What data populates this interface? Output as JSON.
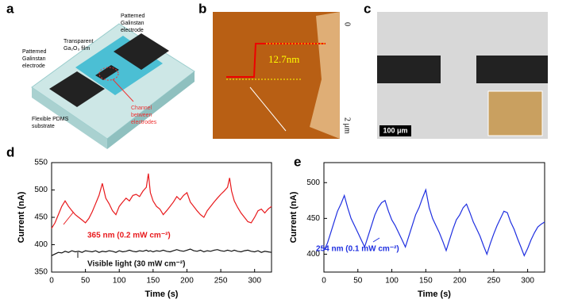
{
  "panels": {
    "a": {
      "label": "a",
      "electrode_top": [
        "Patterned",
        "Galinstan",
        "electrode"
      ],
      "electrode_left": [
        "Patterned",
        "Galinstan",
        "electrode"
      ],
      "film": [
        "Transparent",
        "Ga₂O₃ film"
      ],
      "substrate": [
        "Flexible PDMS",
        "substrate"
      ],
      "channel": [
        "Channel",
        "between",
        "electrodes"
      ]
    },
    "b": {
      "label": "b",
      "height": "12.7nm",
      "scale_top": "0",
      "scale_bottom": "2 μm"
    },
    "c": {
      "label": "c",
      "scale_bar": "100 μm"
    }
  },
  "chart_data": [
    {
      "type": "line",
      "panel_label": "d",
      "x_label": "Time (s)",
      "y_label": "Current (nA)",
      "x": [
        0,
        5,
        10,
        15,
        20,
        25,
        30,
        35,
        40,
        45,
        50,
        55,
        60,
        65,
        70,
        75,
        80,
        85,
        90,
        95,
        100,
        105,
        110,
        115,
        120,
        125,
        130,
        135,
        140,
        143,
        146,
        150,
        155,
        160,
        165,
        170,
        175,
        180,
        185,
        190,
        195,
        200,
        205,
        210,
        215,
        220,
        225,
        230,
        235,
        240,
        245,
        250,
        255,
        260,
        263,
        266,
        270,
        275,
        280,
        285,
        290,
        295,
        300,
        305,
        310,
        315,
        320,
        325
      ],
      "series": [
        {
          "name": "365 nm (0.2 mW cm⁻²)",
          "color": "#e8191c",
          "values": [
            430,
            440,
            455,
            470,
            480,
            470,
            462,
            455,
            450,
            445,
            440,
            448,
            460,
            475,
            490,
            512,
            485,
            475,
            462,
            455,
            470,
            478,
            485,
            480,
            490,
            492,
            488,
            498,
            505,
            530,
            495,
            480,
            470,
            465,
            455,
            462,
            470,
            478,
            488,
            482,
            490,
            495,
            478,
            470,
            462,
            455,
            450,
            462,
            470,
            478,
            485,
            492,
            498,
            505,
            522,
            498,
            480,
            468,
            458,
            450,
            442,
            440,
            450,
            462,
            465,
            458,
            465,
            470
          ]
        },
        {
          "name": "Visible light (30 mW cm⁻²)",
          "color": "#111111",
          "values": [
            380,
            383,
            386,
            385,
            388,
            386,
            389,
            387,
            388,
            386,
            389,
            388,
            387,
            389,
            386,
            388,
            387,
            389,
            388,
            386,
            389,
            387,
            388,
            390,
            388,
            387,
            389,
            388,
            390,
            388,
            389,
            387,
            389,
            388,
            390,
            388,
            387,
            389,
            391,
            389,
            388,
            390,
            392,
            389,
            388,
            390,
            387,
            389,
            388,
            390,
            391,
            389,
            388,
            390,
            389,
            388,
            390,
            388,
            387,
            389,
            390,
            388,
            387,
            389,
            386,
            388,
            387,
            386
          ]
        }
      ],
      "xlim": [
        0,
        325
      ],
      "xticks": [
        0,
        50,
        100,
        150,
        200,
        250,
        300
      ],
      "ylim": [
        350,
        550
      ],
      "yticks": [
        350,
        400,
        450,
        500,
        550
      ]
    },
    {
      "type": "line",
      "panel_label": "e",
      "x_label": "Time (s)",
      "y_label": "Current (nA)",
      "x": [
        0,
        5,
        10,
        15,
        20,
        25,
        30,
        35,
        40,
        45,
        50,
        55,
        60,
        65,
        70,
        75,
        80,
        85,
        90,
        95,
        100,
        105,
        110,
        115,
        120,
        125,
        130,
        135,
        140,
        145,
        150,
        155,
        160,
        165,
        170,
        175,
        180,
        185,
        190,
        195,
        200,
        205,
        210,
        215,
        220,
        225,
        230,
        235,
        240,
        245,
        250,
        255,
        260,
        265,
        270,
        275,
        280,
        285,
        290,
        295,
        300,
        305,
        310,
        315,
        320,
        325
      ],
      "series": [
        {
          "name": "254 nm (0.1 mW cm⁻²)",
          "color": "#1f2fe0",
          "values": [
            405,
            415,
            430,
            445,
            460,
            470,
            482,
            465,
            450,
            440,
            430,
            420,
            410,
            425,
            440,
            455,
            465,
            472,
            475,
            460,
            448,
            440,
            430,
            420,
            410,
            425,
            440,
            455,
            465,
            478,
            490,
            465,
            450,
            440,
            430,
            418,
            405,
            420,
            435,
            448,
            455,
            465,
            470,
            458,
            445,
            435,
            425,
            412,
            400,
            415,
            428,
            440,
            450,
            460,
            458,
            445,
            435,
            422,
            410,
            398,
            408,
            420,
            430,
            438,
            442,
            445
          ]
        }
      ],
      "xlim": [
        0,
        325
      ],
      "xticks": [
        0,
        50,
        100,
        150,
        200,
        250,
        300
      ],
      "ylim": [
        375,
        528
      ],
      "yticks": [
        400,
        450,
        500
      ]
    }
  ]
}
